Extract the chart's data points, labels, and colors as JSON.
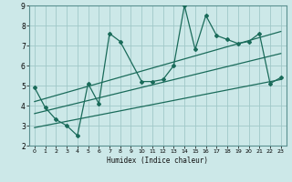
{
  "xlabel": "Humidex (Indice chaleur)",
  "bg_color": "#cce8e8",
  "grid_color": "#a0c8c8",
  "line_color": "#1a6b5a",
  "xlim": [
    -0.5,
    23.5
  ],
  "ylim": [
    2,
    9
  ],
  "xticks": [
    0,
    1,
    2,
    3,
    4,
    5,
    6,
    7,
    8,
    9,
    10,
    11,
    12,
    13,
    14,
    15,
    16,
    17,
    18,
    19,
    20,
    21,
    22,
    23
  ],
  "yticks": [
    2,
    3,
    4,
    5,
    6,
    7,
    8,
    9
  ],
  "data_x": [
    0,
    1,
    2,
    3,
    4,
    5,
    6,
    7,
    8,
    10,
    11,
    12,
    13,
    14,
    15,
    16,
    17,
    18,
    19,
    20,
    21,
    22,
    23
  ],
  "data_y": [
    4.9,
    3.9,
    3.3,
    3.0,
    2.5,
    5.1,
    4.1,
    7.6,
    7.2,
    5.2,
    5.2,
    5.3,
    6.0,
    9.0,
    6.8,
    8.5,
    7.5,
    7.3,
    7.1,
    7.2,
    7.6,
    5.1,
    5.4
  ],
  "trend1_x": [
    0,
    23
  ],
  "trend1_y": [
    3.6,
    6.6
  ],
  "trend2_x": [
    0,
    23
  ],
  "trend2_y": [
    2.9,
    5.3
  ],
  "trend3_x": [
    0,
    23
  ],
  "trend3_y": [
    4.2,
    7.7
  ]
}
